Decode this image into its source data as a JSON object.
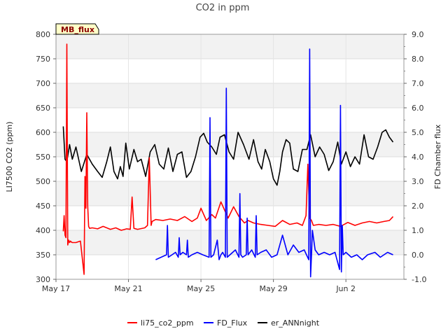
{
  "chart_data": {
    "type": "line",
    "title": "CO2 in ppm",
    "badge": "MB_flux",
    "xlabel": "",
    "ylabel_left": "LI7500 CO2 (ppm)",
    "ylabel_right": "FD Chamber flux",
    "xlim": [
      0,
      19.2
    ],
    "ylim_left": [
      300,
      800
    ],
    "ylim_right": [
      -1.0,
      9.0
    ],
    "x_ticks": [
      {
        "label": "May 17",
        "x": 0
      },
      {
        "label": "May 21",
        "x": 4
      },
      {
        "label": "May 25",
        "x": 8
      },
      {
        "label": "May 29",
        "x": 12
      },
      {
        "label": "Jun 2",
        "x": 16
      }
    ],
    "y_ticks_left": [
      300,
      350,
      400,
      450,
      500,
      550,
      600,
      650,
      700,
      750,
      800
    ],
    "y_ticks_right": [
      "-1.0",
      "0.0",
      "1.0",
      "2.0",
      "3.0",
      "4.0",
      "5.0",
      "6.0",
      "7.0",
      "8.0",
      "9.0"
    ],
    "legend": [
      {
        "name": "li75_co2_ppm",
        "color": "#ff0000"
      },
      {
        "name": "FD_Flux",
        "color": "#0000ff"
      },
      {
        "name": "er_ANNnight",
        "color": "#000000"
      }
    ],
    "series": [
      {
        "name": "er_ANNnight",
        "axis": "left",
        "color": "#000000",
        "x": [
          0.4,
          0.5,
          0.6,
          0.75,
          0.9,
          1.1,
          1.4,
          1.7,
          2.0,
          2.3,
          2.55,
          2.8,
          3.0,
          3.2,
          3.4,
          3.55,
          3.7,
          3.85,
          4.05,
          4.3,
          4.5,
          4.7,
          4.95,
          5.2,
          5.45,
          5.7,
          5.95,
          6.2,
          6.45,
          6.7,
          6.95,
          7.2,
          7.45,
          7.7,
          7.95,
          8.15,
          8.35,
          8.6,
          8.85,
          9.05,
          9.3,
          9.55,
          9.8,
          10.05,
          10.35,
          10.65,
          10.9,
          11.15,
          11.35,
          11.55,
          11.8,
          12.0,
          12.2,
          12.35,
          12.5,
          12.7,
          12.9,
          13.1,
          13.35,
          13.6,
          13.85,
          14.05,
          14.3,
          14.55,
          14.8,
          15.05,
          15.3,
          15.55,
          15.75,
          16.0,
          16.25,
          16.5,
          16.75,
          17.0,
          17.25,
          17.5,
          17.75,
          18.0,
          18.2,
          18.4,
          18.6
        ],
        "values": [
          612,
          545,
          540,
          575,
          545,
          570,
          520,
          555,
          535,
          520,
          508,
          540,
          570,
          520,
          505,
          530,
          510,
          578,
          525,
          565,
          540,
          545,
          510,
          560,
          575,
          535,
          525,
          568,
          520,
          555,
          560,
          508,
          520,
          550,
          590,
          598,
          580,
          570,
          555,
          590,
          595,
          560,
          545,
          600,
          575,
          545,
          585,
          540,
          525,
          565,
          540,
          505,
          492,
          520,
          560,
          585,
          578,
          525,
          520,
          565,
          565,
          595,
          550,
          570,
          555,
          522,
          540,
          580,
          535,
          560,
          530,
          550,
          535,
          595,
          550,
          545,
          570,
          600,
          605,
          590,
          580
        ]
      },
      {
        "name": "li75_co2_ppm",
        "axis": "left",
        "color": "#ff0000",
        "x": [
          0.4,
          0.45,
          0.5,
          0.55,
          0.6,
          0.65,
          0.7,
          0.75,
          0.8,
          0.85,
          0.9,
          1.1,
          1.35,
          1.55,
          1.6,
          1.65,
          1.7,
          1.75,
          1.8,
          1.85,
          2.0,
          2.3,
          2.6,
          3.0,
          3.3,
          3.6,
          3.9,
          4.1,
          4.2,
          4.3,
          4.5,
          4.9,
          5.05,
          5.15,
          5.25,
          5.3,
          5.5,
          5.9,
          6.3,
          6.7,
          7.1,
          7.5,
          7.8,
          8.0,
          8.3,
          8.6,
          8.8,
          9.1,
          9.5,
          9.8,
          10.1,
          10.4,
          10.6,
          10.9,
          11.3,
          11.7,
          12.1,
          12.5,
          12.9,
          13.3,
          13.6,
          13.8,
          13.9,
          14.0,
          14.1,
          14.2,
          14.5,
          14.9,
          15.3,
          15.7,
          16.1,
          16.5,
          16.9,
          17.3,
          17.7,
          18.1,
          18.4,
          18.6
        ],
        "values": [
          398,
          430,
          390,
          385,
          780,
          370,
          380,
          375,
          378,
          376,
          375,
          375,
          378,
          310,
          510,
          445,
          640,
          450,
          408,
          404,
          405,
          403,
          408,
          402,
          405,
          400,
          403,
          402,
          468,
          404,
          402,
          405,
          410,
          548,
          410,
          418,
          422,
          420,
          423,
          420,
          428,
          418,
          425,
          445,
          420,
          432,
          425,
          458,
          425,
          448,
          428,
          415,
          420,
          415,
          412,
          410,
          408,
          420,
          412,
          415,
          410,
          430,
          535,
          425,
          420,
          410,
          412,
          410,
          412,
          408,
          416,
          410,
          415,
          418,
          415,
          418,
          420,
          428
        ]
      },
      {
        "name": "FD_Flux",
        "axis": "right",
        "color": "#0000ff",
        "x": [
          5.5,
          5.8,
          6.1,
          6.15,
          6.2,
          6.4,
          6.6,
          6.75,
          6.8,
          6.85,
          7.0,
          7.2,
          7.25,
          7.3,
          7.5,
          7.8,
          8.1,
          8.45,
          8.5,
          8.55,
          8.7,
          8.9,
          9.0,
          9.1,
          9.2,
          9.35,
          9.4,
          9.45,
          9.6,
          9.9,
          10.1,
          10.15,
          10.2,
          10.3,
          10.5,
          10.55,
          10.6,
          10.8,
          11.0,
          11.05,
          11.1,
          11.3,
          11.6,
          11.9,
          12.2,
          12.5,
          12.8,
          13.1,
          13.4,
          13.7,
          13.95,
          14.0,
          14.05,
          14.1,
          14.15,
          14.3,
          14.5,
          14.8,
          15.1,
          15.4,
          15.65,
          15.7,
          15.75,
          15.8,
          15.85,
          16.0,
          16.3,
          16.6,
          16.9,
          17.2,
          17.6,
          17.9,
          18.1,
          18.3,
          18.6
        ],
        "values": [
          -0.2,
          -0.1,
          0.0,
          1.2,
          -0.1,
          0.0,
          0.1,
          -0.1,
          0.7,
          0.0,
          0.1,
          0.0,
          0.6,
          -0.1,
          0.0,
          0.1,
          0.0,
          -0.1,
          5.6,
          -0.1,
          0.0,
          0.6,
          -0.2,
          0.0,
          0.1,
          -0.1,
          6.8,
          -0.1,
          0.0,
          0.2,
          -0.1,
          2.5,
          0.0,
          -0.1,
          0.0,
          1.5,
          0.0,
          0.2,
          -0.1,
          1.6,
          0.0,
          0.1,
          0.2,
          -0.1,
          0.0,
          0.8,
          0.0,
          0.4,
          0.1,
          0.2,
          -0.2,
          8.4,
          -0.9,
          0.0,
          1.0,
          0.2,
          0.0,
          0.1,
          0.0,
          0.1,
          -0.6,
          6.1,
          -0.7,
          1.2,
          0.0,
          0.1,
          -0.1,
          0.0,
          -0.2,
          0.0,
          0.1,
          -0.1,
          0.0,
          0.1,
          0.0
        ]
      }
    ]
  }
}
